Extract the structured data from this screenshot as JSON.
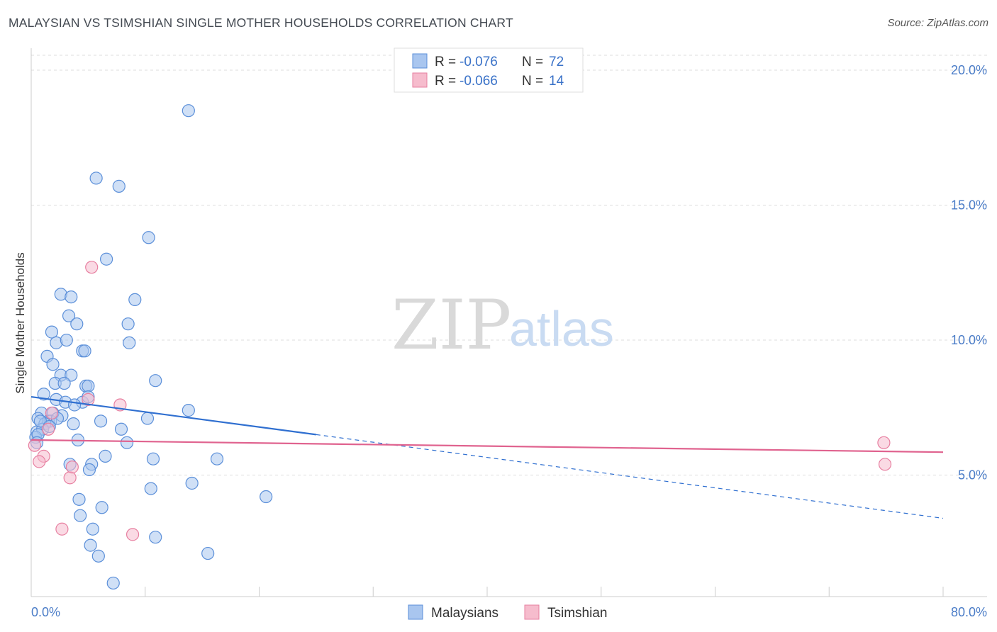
{
  "chart_data": {
    "type": "scatter",
    "title": "MALAYSIAN VS TSIMSHIAN SINGLE MOTHER HOUSEHOLDS CORRELATION CHART",
    "source": "Source: ZipAtlas.com",
    "xlabel": "",
    "ylabel": "Single Mother Households",
    "xlim": [
      0,
      80
    ],
    "ylim": [
      0.5,
      20.5
    ],
    "x_tick_labels": [
      "0.0%",
      "80.0%"
    ],
    "y_ticks": [
      5,
      10,
      15,
      20
    ],
    "y_tick_labels": [
      "5.0%",
      "10.0%",
      "15.0%",
      "20.0%"
    ],
    "watermark": {
      "zip": "ZIP",
      "atlas": "atlas"
    },
    "legend": {
      "rows": [
        {
          "r_label": "R = ",
          "r_value": "-0.076",
          "n_label": "N = ",
          "n_value": "72"
        },
        {
          "r_label": "R = ",
          "r_value": "-0.066",
          "n_label": "N = ",
          "n_value": "14"
        }
      ]
    },
    "series": [
      {
        "name": "Malaysians",
        "color": "#5b8fd9",
        "fill": "#a9c6ef",
        "points": [
          [
            13.8,
            18.5
          ],
          [
            5.7,
            16.0
          ],
          [
            7.7,
            15.7
          ],
          [
            10.3,
            13.8
          ],
          [
            6.6,
            13.0
          ],
          [
            2.6,
            11.7
          ],
          [
            3.5,
            11.6
          ],
          [
            9.1,
            11.5
          ],
          [
            3.3,
            10.9
          ],
          [
            8.5,
            10.6
          ],
          [
            4.0,
            10.6
          ],
          [
            1.8,
            10.3
          ],
          [
            2.2,
            9.9
          ],
          [
            3.1,
            10.0
          ],
          [
            8.6,
            9.9
          ],
          [
            4.5,
            9.6
          ],
          [
            4.7,
            9.6
          ],
          [
            1.4,
            9.4
          ],
          [
            1.9,
            9.1
          ],
          [
            2.6,
            8.7
          ],
          [
            3.5,
            8.7
          ],
          [
            10.9,
            8.5
          ],
          [
            2.1,
            8.4
          ],
          [
            2.9,
            8.4
          ],
          [
            4.8,
            8.3
          ],
          [
            5.0,
            8.3
          ],
          [
            1.1,
            8.0
          ],
          [
            2.2,
            7.8
          ],
          [
            3.0,
            7.7
          ],
          [
            4.5,
            7.7
          ],
          [
            3.8,
            7.6
          ],
          [
            0.9,
            7.3
          ],
          [
            2.7,
            7.2
          ],
          [
            1.9,
            7.3
          ],
          [
            5.0,
            7.9
          ],
          [
            0.6,
            7.1
          ],
          [
            1.5,
            7.0
          ],
          [
            1.7,
            7.0
          ],
          [
            1.2,
            6.9
          ],
          [
            3.7,
            6.9
          ],
          [
            6.1,
            7.0
          ],
          [
            10.2,
            7.1
          ],
          [
            13.8,
            7.4
          ],
          [
            0.5,
            6.6
          ],
          [
            1.0,
            6.7
          ],
          [
            0.4,
            6.4
          ],
          [
            0.6,
            6.5
          ],
          [
            0.5,
            6.2
          ],
          [
            4.1,
            6.3
          ],
          [
            7.9,
            6.7
          ],
          [
            8.4,
            6.2
          ],
          [
            6.5,
            5.7
          ],
          [
            3.4,
            5.4
          ],
          [
            5.3,
            5.4
          ],
          [
            5.1,
            5.2
          ],
          [
            10.7,
            5.6
          ],
          [
            16.3,
            5.6
          ],
          [
            14.1,
            4.7
          ],
          [
            10.5,
            4.5
          ],
          [
            20.6,
            4.2
          ],
          [
            4.2,
            4.1
          ],
          [
            6.2,
            3.8
          ],
          [
            4.3,
            3.5
          ],
          [
            5.4,
            3.0
          ],
          [
            10.9,
            2.7
          ],
          [
            5.2,
            2.4
          ],
          [
            15.5,
            2.1
          ],
          [
            5.9,
            2.0
          ],
          [
            7.2,
            1.0
          ],
          [
            0.8,
            7.0
          ],
          [
            2.3,
            7.1
          ],
          [
            1.6,
            6.8
          ]
        ]
      },
      {
        "name": "Tsimshian",
        "color": "#e77fa0",
        "fill": "#f6bccd",
        "points": [
          [
            5.3,
            12.7
          ],
          [
            7.8,
            7.6
          ],
          [
            5.0,
            7.8
          ],
          [
            1.8,
            7.3
          ],
          [
            1.5,
            6.7
          ],
          [
            0.3,
            6.1
          ],
          [
            1.1,
            5.7
          ],
          [
            0.7,
            5.5
          ],
          [
            3.4,
            4.9
          ],
          [
            3.6,
            5.3
          ],
          [
            2.7,
            3.0
          ],
          [
            8.9,
            2.8
          ],
          [
            74.8,
            6.2
          ],
          [
            74.9,
            5.4
          ]
        ]
      }
    ],
    "trend_lines": [
      {
        "series": "Malaysians",
        "solid": [
          [
            0,
            7.9
          ],
          [
            25,
            6.5
          ]
        ],
        "dashed": [
          [
            25,
            6.5
          ],
          [
            80,
            3.4
          ]
        ]
      },
      {
        "series": "Tsimshian",
        "solid": [
          [
            0,
            6.3
          ],
          [
            80,
            5.85
          ]
        ]
      }
    ]
  }
}
